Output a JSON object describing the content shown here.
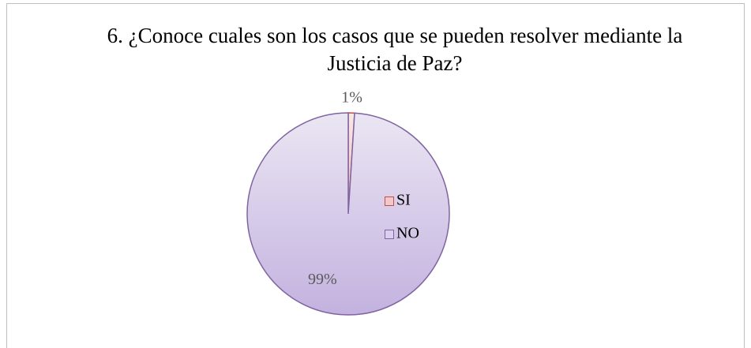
{
  "chart_data": {
    "type": "pie",
    "title": "6. ¿Conoce cuales son los casos que se pueden resolver mediante la Justicia de Paz?",
    "categories": [
      "SI",
      "NO"
    ],
    "values": [
      1,
      99
    ],
    "value_labels": [
      "1%",
      "99%"
    ],
    "colors": [
      "#f2c9c8",
      "#d9cfee"
    ],
    "legend": "right"
  }
}
